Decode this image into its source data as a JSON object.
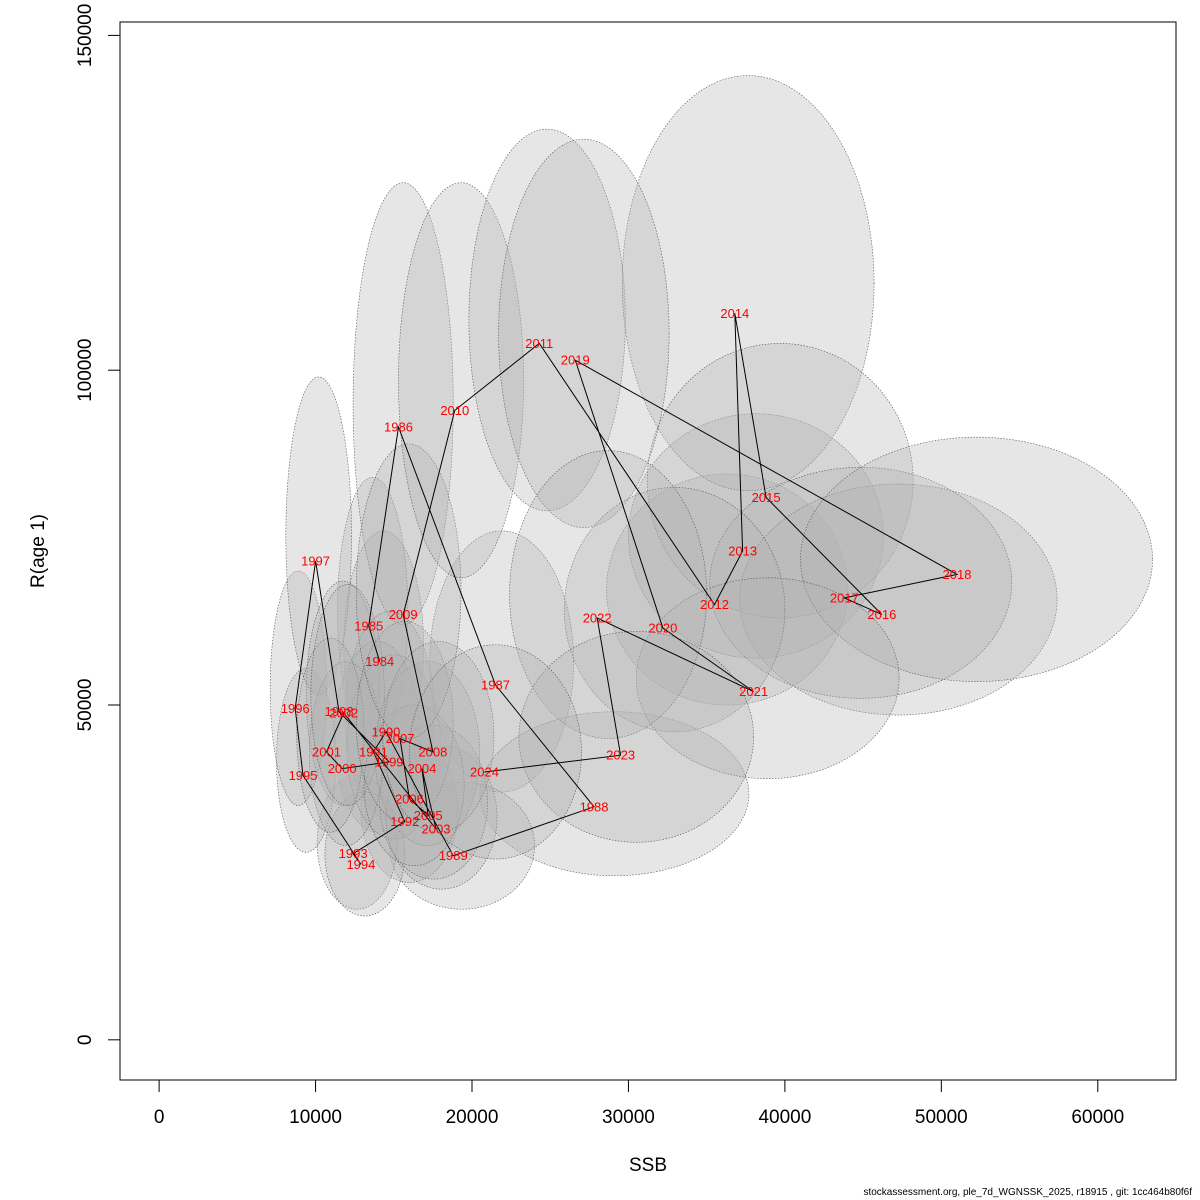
{
  "footer": "stockassessment.org, ple_7d_WGNSSK_2025, r18915 , git: 1cc464b80f6f",
  "chart_data": {
    "type": "scatter",
    "title": "",
    "xlabel": "SSB",
    "ylabel": "R(age 1)",
    "xlim": [
      -2500,
      65000
    ],
    "ylim": [
      -6000,
      152000
    ],
    "xticks": [
      0,
      10000,
      20000,
      30000,
      40000,
      50000,
      60000
    ],
    "yticks": [
      0,
      50000,
      100000,
      150000
    ],
    "colors": {
      "labels": "#ff0000",
      "path": "#000000",
      "ellipse_fill": "#b0b0b0",
      "ellipse_stroke": "#555555"
    },
    "grid": false,
    "points": [
      {
        "year": "1984",
        "ssb": 14100,
        "r": 56500,
        "ssb_lo": 11800,
        "ssb_hi": 16900,
        "r_lo": 42000,
        "r_hi": 76000
      },
      {
        "year": "1985",
        "ssb": 13400,
        "r": 61800,
        "ssb_lo": 11400,
        "ssb_hi": 15900,
        "r_lo": 44000,
        "r_hi": 84000
      },
      {
        "year": "1986",
        "ssb": 15300,
        "r": 91500,
        "ssb_lo": 12400,
        "ssb_hi": 18800,
        "r_lo": 62000,
        "r_hi": 128000
      },
      {
        "year": "1987",
        "ssb": 21500,
        "r": 53000,
        "ssb_lo": 17300,
        "ssb_hi": 26500,
        "r_lo": 37000,
        "r_hi": 76000
      },
      {
        "year": "1988",
        "ssb": 27800,
        "r": 34800,
        "ssb_lo": 20500,
        "ssb_hi": 37700,
        "r_lo": 24500,
        "r_hi": 49000
      },
      {
        "year": "1989",
        "ssb": 18800,
        "r": 27500,
        "ssb_lo": 14700,
        "ssb_hi": 24000,
        "r_lo": 19500,
        "r_hi": 38500
      },
      {
        "year": "1990",
        "ssb": 14500,
        "r": 46000,
        "ssb_lo": 11900,
        "ssb_hi": 17600,
        "r_lo": 33000,
        "r_hi": 64000
      },
      {
        "year": "1991",
        "ssb": 13700,
        "r": 43000,
        "ssb_lo": 11200,
        "ssb_hi": 16700,
        "r_lo": 31000,
        "r_hi": 59500
      },
      {
        "year": "1992",
        "ssb": 15700,
        "r": 32600,
        "ssb_lo": 12900,
        "ssb_hi": 19100,
        "r_lo": 23500,
        "r_hi": 45000
      },
      {
        "year": "1993",
        "ssb": 12400,
        "r": 27800,
        "ssb_lo": 10100,
        "ssb_hi": 15200,
        "r_lo": 19500,
        "r_hi": 39500
      },
      {
        "year": "1994",
        "ssb": 12900,
        "r": 26200,
        "ssb_lo": 10600,
        "ssb_hi": 15700,
        "r_lo": 18500,
        "r_hi": 37000
      },
      {
        "year": "1995",
        "ssb": 9200,
        "r": 39500,
        "ssb_lo": 7500,
        "ssb_hi": 11300,
        "r_lo": 28000,
        "r_hi": 55500
      },
      {
        "year": "1996",
        "ssb": 8700,
        "r": 49500,
        "ssb_lo": 7100,
        "ssb_hi": 10700,
        "r_lo": 35000,
        "r_hi": 70000
      },
      {
        "year": "1997",
        "ssb": 10000,
        "r": 71500,
        "ssb_lo": 8100,
        "ssb_hi": 12300,
        "r_lo": 51500,
        "r_hi": 99000
      },
      {
        "year": "1998",
        "ssb": 11500,
        "r": 49000,
        "ssb_lo": 9400,
        "ssb_hi": 14100,
        "r_lo": 35000,
        "r_hi": 68500
      },
      {
        "year": "1999",
        "ssb": 14700,
        "r": 41500,
        "ssb_lo": 12000,
        "ssb_hi": 18000,
        "r_lo": 30000,
        "r_hi": 57500
      },
      {
        "year": "2000",
        "ssb": 11700,
        "r": 40500,
        "ssb_lo": 9600,
        "ssb_hi": 14300,
        "r_lo": 29000,
        "r_hi": 56500
      },
      {
        "year": "2001",
        "ssb": 10700,
        "r": 43000,
        "ssb_lo": 8800,
        "ssb_hi": 13100,
        "r_lo": 31000,
        "r_hi": 60000
      },
      {
        "year": "2002",
        "ssb": 11800,
        "r": 48800,
        "ssb_lo": 9700,
        "ssb_hi": 14400,
        "r_lo": 35000,
        "r_hi": 68000
      },
      {
        "year": "2003",
        "ssb": 17700,
        "r": 31500,
        "ssb_lo": 14500,
        "ssb_hi": 21600,
        "r_lo": 22500,
        "r_hi": 44000
      },
      {
        "year": "2004",
        "ssb": 16800,
        "r": 40500,
        "ssb_lo": 13800,
        "ssb_hi": 20500,
        "r_lo": 29000,
        "r_hi": 56500
      },
      {
        "year": "2005",
        "ssb": 17200,
        "r": 33500,
        "ssb_lo": 14100,
        "ssb_hi": 21000,
        "r_lo": 24000,
        "r_hi": 47000
      },
      {
        "year": "2006",
        "ssb": 16000,
        "r": 36000,
        "ssb_lo": 13100,
        "ssb_hi": 19500,
        "r_lo": 26000,
        "r_hi": 50000
      },
      {
        "year": "2007",
        "ssb": 15400,
        "r": 45000,
        "ssb_lo": 12600,
        "ssb_hi": 18800,
        "r_lo": 32500,
        "r_hi": 62500
      },
      {
        "year": "2008",
        "ssb": 17500,
        "r": 43000,
        "ssb_lo": 14300,
        "ssb_hi": 21400,
        "r_lo": 31000,
        "r_hi": 59500
      },
      {
        "year": "2009",
        "ssb": 15600,
        "r": 63500,
        "ssb_lo": 12600,
        "ssb_hi": 19300,
        "r_lo": 45000,
        "r_hi": 89000
      },
      {
        "year": "2010",
        "ssb": 18900,
        "r": 94000,
        "ssb_lo": 15300,
        "ssb_hi": 23300,
        "r_lo": 69000,
        "r_hi": 128000
      },
      {
        "year": "2011",
        "ssb": 24300,
        "r": 104000,
        "ssb_lo": 19800,
        "ssb_hi": 29800,
        "r_lo": 79000,
        "r_hi": 136000
      },
      {
        "year": "2012",
        "ssb": 35500,
        "r": 65000,
        "ssb_lo": 28600,
        "ssb_hi": 44000,
        "r_lo": 50000,
        "r_hi": 84500
      },
      {
        "year": "2013",
        "ssb": 37300,
        "r": 73000,
        "ssb_lo": 30000,
        "ssb_hi": 46300,
        "r_lo": 57000,
        "r_hi": 93500
      },
      {
        "year": "2014",
        "ssb": 36800,
        "r": 108500,
        "ssb_lo": 29600,
        "ssb_hi": 45700,
        "r_lo": 82000,
        "r_hi": 144000
      },
      {
        "year": "2015",
        "ssb": 38800,
        "r": 81000,
        "ssb_lo": 31200,
        "ssb_hi": 48200,
        "r_lo": 63000,
        "r_hi": 104000
      },
      {
        "year": "2016",
        "ssb": 46200,
        "r": 63500,
        "ssb_lo": 37100,
        "ssb_hi": 57400,
        "r_lo": 48500,
        "r_hi": 83000
      },
      {
        "year": "2017",
        "ssb": 43800,
        "r": 66000,
        "ssb_lo": 35200,
        "ssb_hi": 54500,
        "r_lo": 51000,
        "r_hi": 85500
      },
      {
        "year": "2018",
        "ssb": 51000,
        "r": 69500,
        "ssb_lo": 41000,
        "ssb_hi": 63500,
        "r_lo": 53500,
        "r_hi": 90000
      },
      {
        "year": "2019",
        "ssb": 26600,
        "r": 101500,
        "ssb_lo": 21700,
        "ssb_hi": 32600,
        "r_lo": 76500,
        "r_hi": 134500
      },
      {
        "year": "2020",
        "ssb": 32200,
        "r": 61500,
        "ssb_lo": 25900,
        "ssb_hi": 40000,
        "r_lo": 46000,
        "r_hi": 82500
      },
      {
        "year": "2021",
        "ssb": 38000,
        "r": 52000,
        "ssb_lo": 30500,
        "ssb_hi": 47300,
        "r_lo": 39000,
        "r_hi": 69000
      },
      {
        "year": "2022",
        "ssb": 28000,
        "r": 63000,
        "ssb_lo": 22400,
        "ssb_hi": 35000,
        "r_lo": 45000,
        "r_hi": 88000
      },
      {
        "year": "2023",
        "ssb": 29500,
        "r": 42500,
        "ssb_lo": 23000,
        "ssb_hi": 38000,
        "r_lo": 29500,
        "r_hi": 61000
      },
      {
        "year": "2024",
        "ssb": 20800,
        "r": 40000,
        "ssb_lo": 16000,
        "ssb_hi": 27000,
        "r_lo": 27000,
        "r_hi": 59000
      }
    ]
  }
}
